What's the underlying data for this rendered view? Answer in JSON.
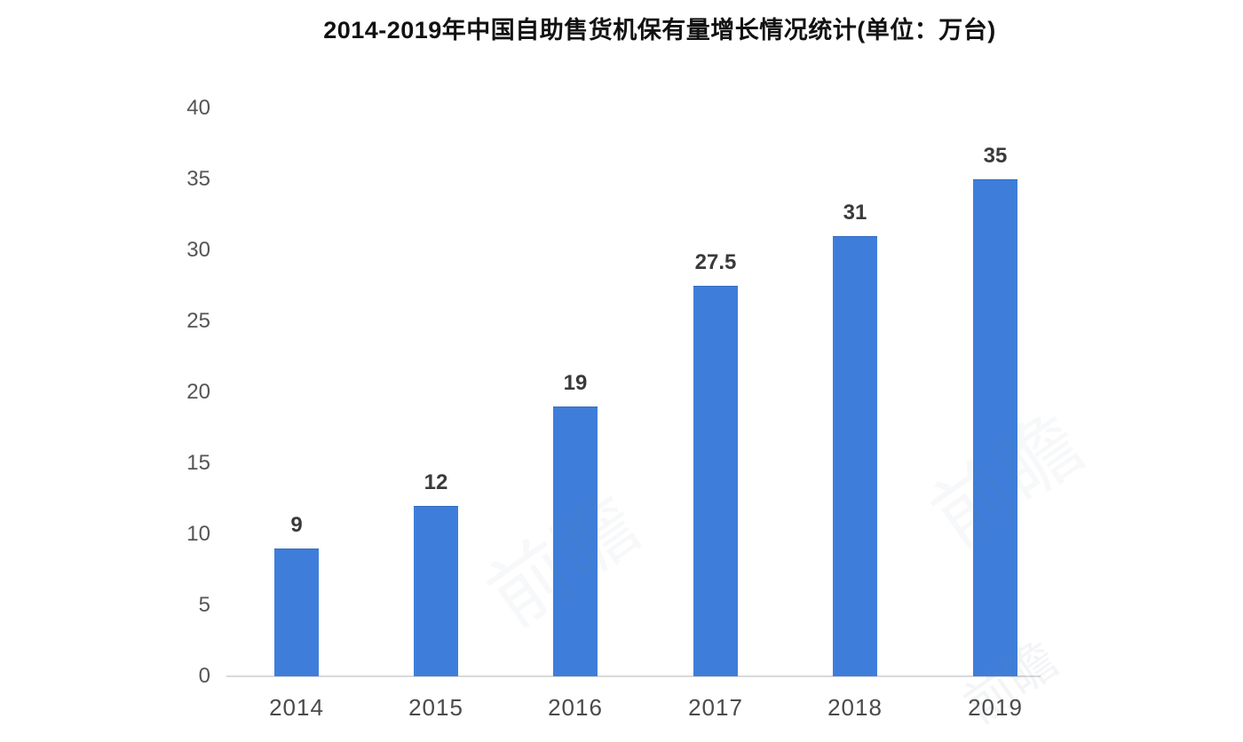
{
  "title": "2014-2019年中国自助售货机保有量增长情况统计(单位：万台)",
  "watermark_text": "前瞻",
  "colors": {
    "bar": "#3e7eda",
    "baseline": "#d9d9d9",
    "title": "#121212",
    "y_tick": "#555555",
    "x_tick": "#4a4a4a",
    "value_label": "#3a3a3a",
    "background": "#ffffff"
  },
  "chart_data": {
    "type": "bar",
    "title": "2014-2019年中国自助售货机保有量增长情况统计(单位：万台)",
    "categories": [
      "2014",
      "2015",
      "2016",
      "2017",
      "2018",
      "2019"
    ],
    "values": [
      9,
      12,
      19,
      27.5,
      31,
      35
    ],
    "value_labels": [
      "9",
      "12",
      "19",
      "27.5",
      "31",
      "35"
    ],
    "xlabel": "",
    "ylabel": "",
    "unit": "万台",
    "ylim": [
      0,
      40
    ],
    "yticks": [
      0,
      5,
      10,
      15,
      20,
      25,
      30,
      35,
      40
    ],
    "grid": false,
    "legend": "none",
    "bar_color": "#3e7eda"
  }
}
